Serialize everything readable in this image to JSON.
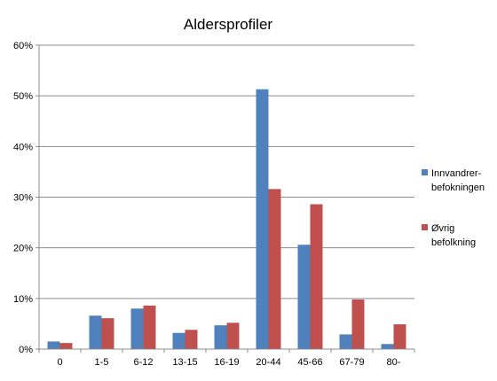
{
  "chart_data": {
    "type": "bar",
    "title": "Aldersprofiler",
    "categories": [
      "0",
      "1-5",
      "6-12",
      "13-15",
      "16-19",
      "20-44",
      "45-66",
      "67-79",
      "80-"
    ],
    "series": [
      {
        "name": "Innvandrer- befokningen",
        "name_lines": [
          "Innvandrer-",
          "befokningen"
        ],
        "color": "#4f81bd",
        "values": [
          1.5,
          6.6,
          8.0,
          3.2,
          4.7,
          51.3,
          20.6,
          2.9,
          1.0
        ]
      },
      {
        "name": "Øvrig befolkning",
        "name_lines": [
          "Øvrig",
          "befolkning"
        ],
        "color": "#c0504d",
        "values": [
          1.2,
          6.1,
          8.6,
          3.8,
          5.2,
          31.6,
          28.6,
          9.8,
          4.9
        ]
      }
    ],
    "ylim": [
      0,
      60
    ],
    "yticks": [
      "0%",
      "10%",
      "20%",
      "30%",
      "40%",
      "50%",
      "60%"
    ],
    "ytick_values": [
      0,
      10,
      20,
      30,
      40,
      50,
      60
    ],
    "grid": true,
    "legend_position": "right"
  }
}
